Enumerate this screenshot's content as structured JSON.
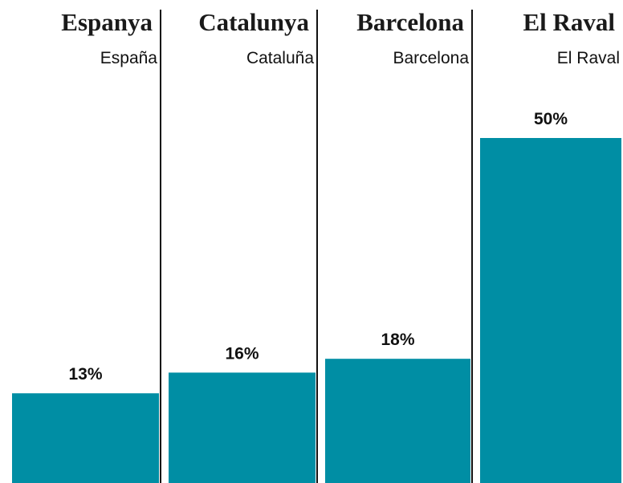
{
  "chart_data": {
    "type": "bar",
    "categories": [
      "Espanya",
      "Catalunya",
      "Barcelona",
      "El Raval"
    ],
    "category_subtitles": [
      "España",
      "Cataluña",
      "Barcelona",
      "El Raval"
    ],
    "values": [
      13,
      16,
      18,
      50
    ],
    "value_labels": [
      "13%",
      "16%",
      "18%",
      "50%"
    ],
    "color": "#008ea4"
  }
}
